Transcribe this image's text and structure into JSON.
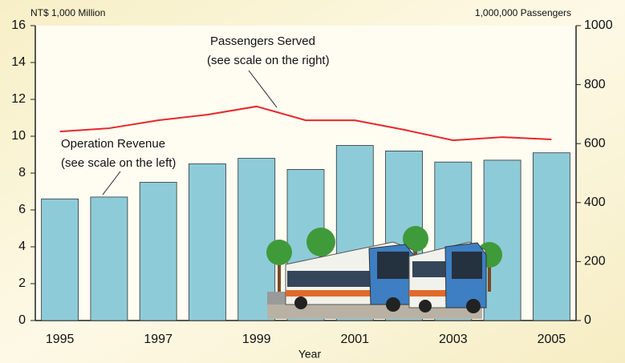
{
  "chart_data": {
    "type": "bar-line",
    "y_label": "NT$ 1,000 Million",
    "y2_label": "1,000,000 Passengers",
    "x_label": "Year",
    "categories": [
      "1995",
      null,
      "1997",
      null,
      "1999",
      null,
      "2001",
      null,
      "2003",
      null,
      "2005"
    ],
    "series": [
      {
        "name": "Operation Revenue",
        "type": "bar",
        "color": "#8ecbd9",
        "axis": "y",
        "values": [
          6.6,
          6.7,
          7.5,
          8.5,
          8.8,
          8.2,
          9.5,
          9.2,
          8.6,
          8.7,
          9.1
        ]
      },
      {
        "name": "Passengers Served",
        "type": "line",
        "color": "#e8262a",
        "axis": "y2",
        "values": [
          641,
          652,
          679,
          698,
          726,
          679,
          679,
          647,
          611,
          622,
          614
        ]
      }
    ],
    "annotations": [
      "(see scale on the left)",
      "(see scale on the right)"
    ],
    "ylim": [
      0,
      16
    ],
    "yticks": [
      0,
      2,
      4,
      6,
      8,
      10,
      12,
      14,
      16
    ],
    "y2lim": [
      0,
      1000
    ],
    "y2ticks": [
      0,
      200,
      400,
      600,
      800,
      1000
    ]
  }
}
